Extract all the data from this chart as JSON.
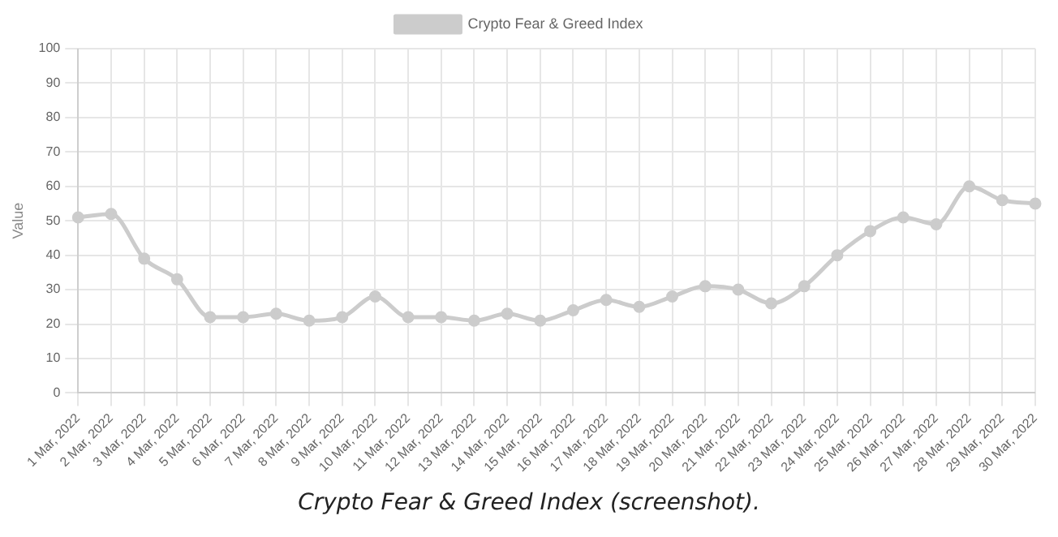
{
  "chart_data": {
    "type": "line",
    "categories": [
      "1 Mar, 2022",
      "2 Mar, 2022",
      "3 Mar, 2022",
      "4 Mar, 2022",
      "5 Mar, 2022",
      "6 Mar, 2022",
      "7 Mar, 2022",
      "8 Mar, 2022",
      "9 Mar, 2022",
      "10 Mar, 2022",
      "11 Mar, 2022",
      "12 Mar, 2022",
      "13 Mar, 2022",
      "14 Mar, 2022",
      "15 Mar, 2022",
      "16 Mar, 2022",
      "17 Mar, 2022",
      "18 Mar, 2022",
      "19 Mar, 2022",
      "20 Mar, 2022",
      "21 Mar, 2022",
      "22 Mar, 2022",
      "23 Mar, 2022",
      "24 Mar, 2022",
      "25 Mar, 2022",
      "26 Mar, 2022",
      "27 Mar, 2022",
      "28 Mar, 2022",
      "29 Mar, 2022",
      "30 Mar, 2022"
    ],
    "series": [
      {
        "name": "Crypto Fear & Greed Index",
        "color": "#cccccc",
        "values": [
          51,
          52,
          39,
          33,
          22,
          22,
          23,
          21,
          22,
          28,
          22,
          22,
          21,
          23,
          21,
          24,
          27,
          25,
          28,
          31,
          30,
          26,
          31,
          40,
          47,
          51,
          49,
          60,
          56,
          55
        ]
      }
    ],
    "ylabel": "Value",
    "ylim": [
      0,
      100
    ],
    "yticks": [
      0,
      10,
      20,
      30,
      40,
      50,
      60,
      70,
      80,
      90,
      100
    ],
    "grid": true,
    "legend": "top",
    "marker": "circle",
    "line_style": "solid",
    "annotations": [
      "Crypto Fear & Greed Index (screenshot)."
    ]
  }
}
